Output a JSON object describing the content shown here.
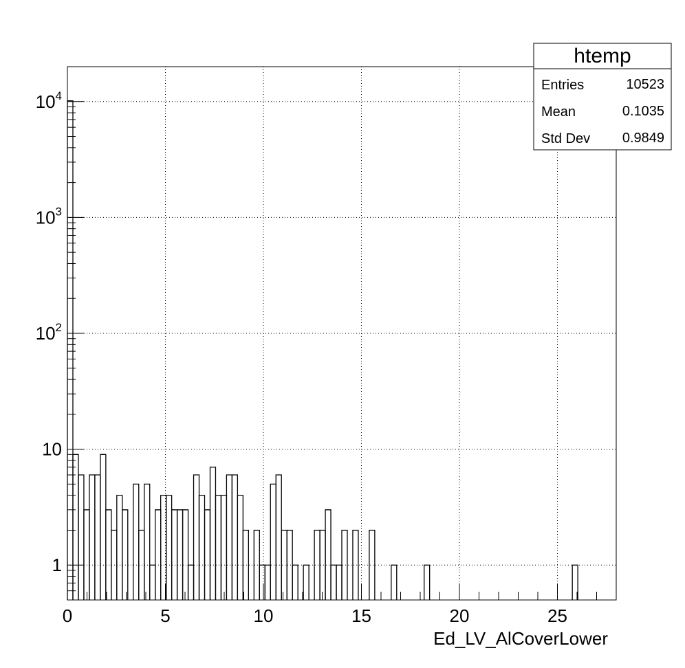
{
  "chart_data": {
    "type": "histogram",
    "title": "",
    "xlabel": "Ed_LV_AlCoverLower",
    "ylabel": "",
    "xlim": [
      0,
      28
    ],
    "ylim": [
      0.5,
      20000
    ],
    "yscale": "log",
    "grid": true,
    "bin_width": 0.28,
    "x_ticks": [
      "0",
      "5",
      "10",
      "15",
      "20",
      "25"
    ],
    "y_ticks": [
      {
        "value": 1,
        "base": "1",
        "exp": ""
      },
      {
        "value": 10,
        "base": "10",
        "exp": ""
      },
      {
        "value": 100,
        "base": "10",
        "exp": "2"
      },
      {
        "value": 1000,
        "base": "10",
        "exp": "3"
      },
      {
        "value": 10000,
        "base": "10",
        "exp": "4"
      }
    ],
    "bins": [
      [
        0.0,
        10150
      ],
      [
        0.28,
        9
      ],
      [
        0.56,
        6
      ],
      [
        0.84,
        3
      ],
      [
        1.12,
        6
      ],
      [
        1.4,
        6
      ],
      [
        1.68,
        9
      ],
      [
        1.96,
        3
      ],
      [
        2.24,
        2
      ],
      [
        2.52,
        4
      ],
      [
        2.8,
        3
      ],
      [
        3.36,
        5
      ],
      [
        3.64,
        2
      ],
      [
        3.92,
        5
      ],
      [
        4.2,
        1
      ],
      [
        4.48,
        3
      ],
      [
        4.76,
        4
      ],
      [
        5.04,
        4
      ],
      [
        5.32,
        3
      ],
      [
        5.6,
        3
      ],
      [
        5.88,
        3
      ],
      [
        6.16,
        1
      ],
      [
        6.44,
        6
      ],
      [
        6.72,
        4
      ],
      [
        7.0,
        3
      ],
      [
        7.28,
        7
      ],
      [
        7.56,
        4
      ],
      [
        7.84,
        4
      ],
      [
        8.12,
        6
      ],
      [
        8.4,
        6
      ],
      [
        8.68,
        4
      ],
      [
        8.96,
        2
      ],
      [
        9.52,
        2
      ],
      [
        9.8,
        1
      ],
      [
        10.08,
        1
      ],
      [
        10.36,
        5
      ],
      [
        10.64,
        6
      ],
      [
        10.92,
        2
      ],
      [
        11.2,
        2
      ],
      [
        11.48,
        1
      ],
      [
        12.04,
        1
      ],
      [
        12.6,
        2
      ],
      [
        12.88,
        2
      ],
      [
        13.16,
        3
      ],
      [
        13.44,
        1
      ],
      [
        13.72,
        1
      ],
      [
        14.0,
        2
      ],
      [
        14.56,
        2
      ],
      [
        15.4,
        2
      ],
      [
        16.52,
        1
      ],
      [
        18.2,
        1
      ],
      [
        25.76,
        1
      ]
    ],
    "stats_box": {
      "title": "htemp",
      "rows": [
        {
          "label": "Entries",
          "value": "10523"
        },
        {
          "label": "Mean",
          "value": "0.1035"
        },
        {
          "label": "Std Dev",
          "value": "0.9849"
        }
      ]
    }
  }
}
